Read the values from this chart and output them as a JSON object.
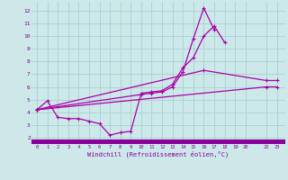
{
  "bg_color": "#cce8e8",
  "line_color": "#aa00aa",
  "grid_color": "#aad0d0",
  "xlabel": "Windchill (Refroidissement éolien,°C)",
  "ylim": [
    1.5,
    12.7
  ],
  "xlim": [
    -0.5,
    23.8
  ],
  "yticks": [
    2,
    3,
    4,
    5,
    6,
    7,
    8,
    9,
    10,
    11,
    12
  ],
  "xticks": [
    0,
    1,
    2,
    3,
    4,
    5,
    6,
    7,
    8,
    9,
    10,
    11,
    12,
    13,
    14,
    15,
    16,
    17,
    18,
    19,
    20,
    22,
    23
  ],
  "bottom_bar_color": "#880099",
  "line1_x": [
    0,
    1,
    2,
    3,
    4,
    5,
    6,
    7,
    8,
    9,
    10,
    11,
    12,
    13,
    14,
    15,
    16,
    17,
    18
  ],
  "line1_y": [
    4.2,
    4.9,
    3.6,
    3.5,
    3.5,
    3.3,
    3.1,
    2.2,
    2.4,
    2.5,
    5.5,
    5.6,
    5.7,
    6.2,
    7.5,
    8.3,
    10.0,
    10.8,
    9.5
  ],
  "line2_x": [
    0,
    10,
    11,
    12,
    13,
    14,
    15,
    16,
    17
  ],
  "line2_y": [
    4.2,
    5.4,
    5.5,
    5.6,
    6.0,
    7.2,
    9.8,
    12.2,
    10.5
  ],
  "line3_x": [
    0,
    16,
    22,
    23
  ],
  "line3_y": [
    4.2,
    7.3,
    6.5,
    6.5
  ],
  "line4_x": [
    0,
    22,
    23
  ],
  "line4_y": [
    4.2,
    6.0,
    6.0
  ]
}
